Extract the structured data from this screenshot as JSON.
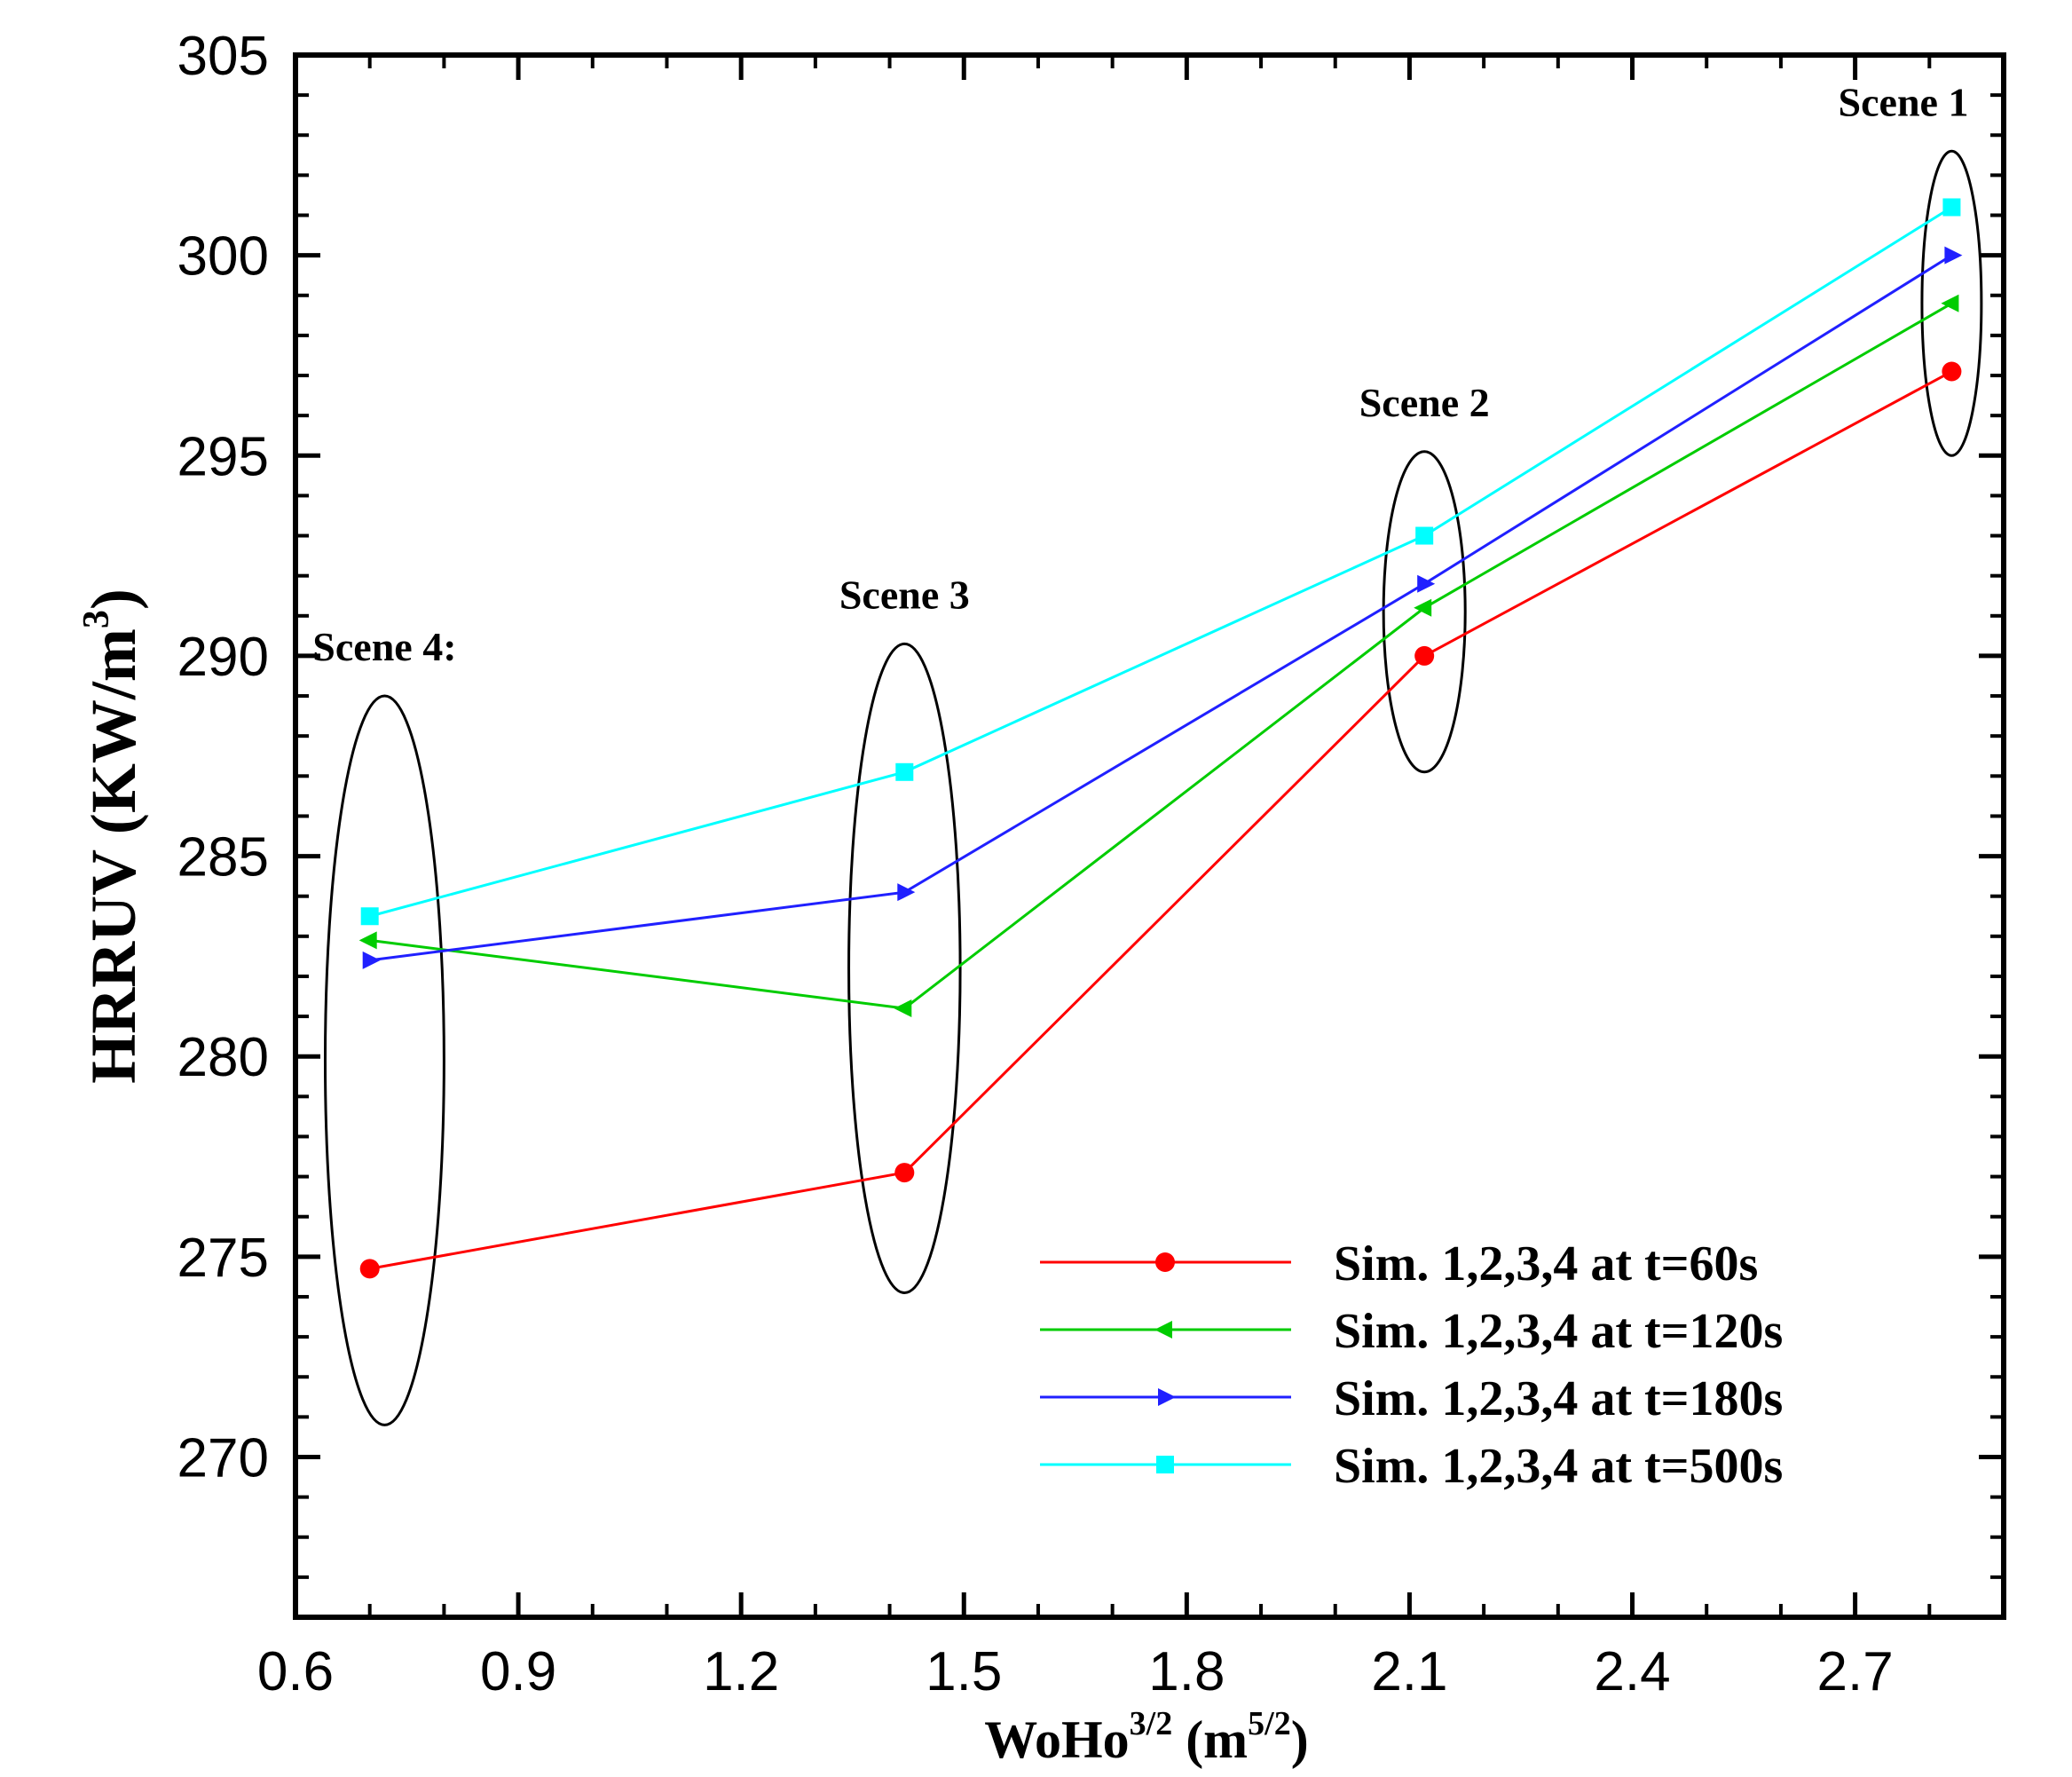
{
  "chart_data": {
    "type": "line",
    "xlabel": {
      "base": "WoHo",
      "exp": "3/2",
      "unit_prefix": " (m",
      "unit_exp": "5/2",
      "unit_suffix": ")"
    },
    "ylabel": {
      "text": "HRRUV (KW/m",
      "exp": "3",
      "suffix": ")"
    },
    "xlim": [
      0.6,
      2.9
    ],
    "ylim": [
      266,
      305
    ],
    "xticks": [
      "0.6",
      "0.9",
      "1.2",
      "1.5",
      "1.8",
      "2.1",
      "2.4",
      "2.7"
    ],
    "yticks": [
      "270",
      "275",
      "280",
      "285",
      "290",
      "295",
      "300",
      "305"
    ],
    "x": [
      0.7,
      1.42,
      2.12,
      2.83
    ],
    "series": [
      {
        "name": "Sim. 1,2,3,4 at t=60s",
        "color": "#ff0000",
        "marker": "circle",
        "values": [
          274.7,
          277.1,
          290.0,
          297.1
        ]
      },
      {
        "name": "Sim. 1,2,3,4 at t=120s",
        "color": "#00cc00",
        "marker": "triangle-left",
        "values": [
          282.9,
          281.2,
          291.2,
          298.8
        ]
      },
      {
        "name": "Sim. 1,2,3,4 at t=180s",
        "color": "#2020ff",
        "marker": "triangle-right",
        "values": [
          282.4,
          284.1,
          291.8,
          300.0
        ]
      },
      {
        "name": "Sim. 1,2,3,4 at t=500s",
        "color": "#00ffff",
        "marker": "square",
        "values": [
          283.5,
          287.1,
          293.0,
          301.2
        ]
      }
    ],
    "annotations": [
      {
        "label": "Scene 1",
        "x": 2.83,
        "y_center": 298.8,
        "y_half": 3.8,
        "x_half": 0.04
      },
      {
        "label": "Scene 2",
        "x": 2.12,
        "y_center": 291.1,
        "y_half": 4.0,
        "x_half": 0.055
      },
      {
        "label": "Scene 3",
        "x": 1.42,
        "y_center": 282.2,
        "y_half": 8.1,
        "x_half": 0.075
      },
      {
        "label": "Scene 4:",
        "x": 0.72,
        "y_center": 279.9,
        "y_half": 9.1,
        "x_half": 0.08
      }
    ],
    "legend_position": "bottom-right"
  }
}
